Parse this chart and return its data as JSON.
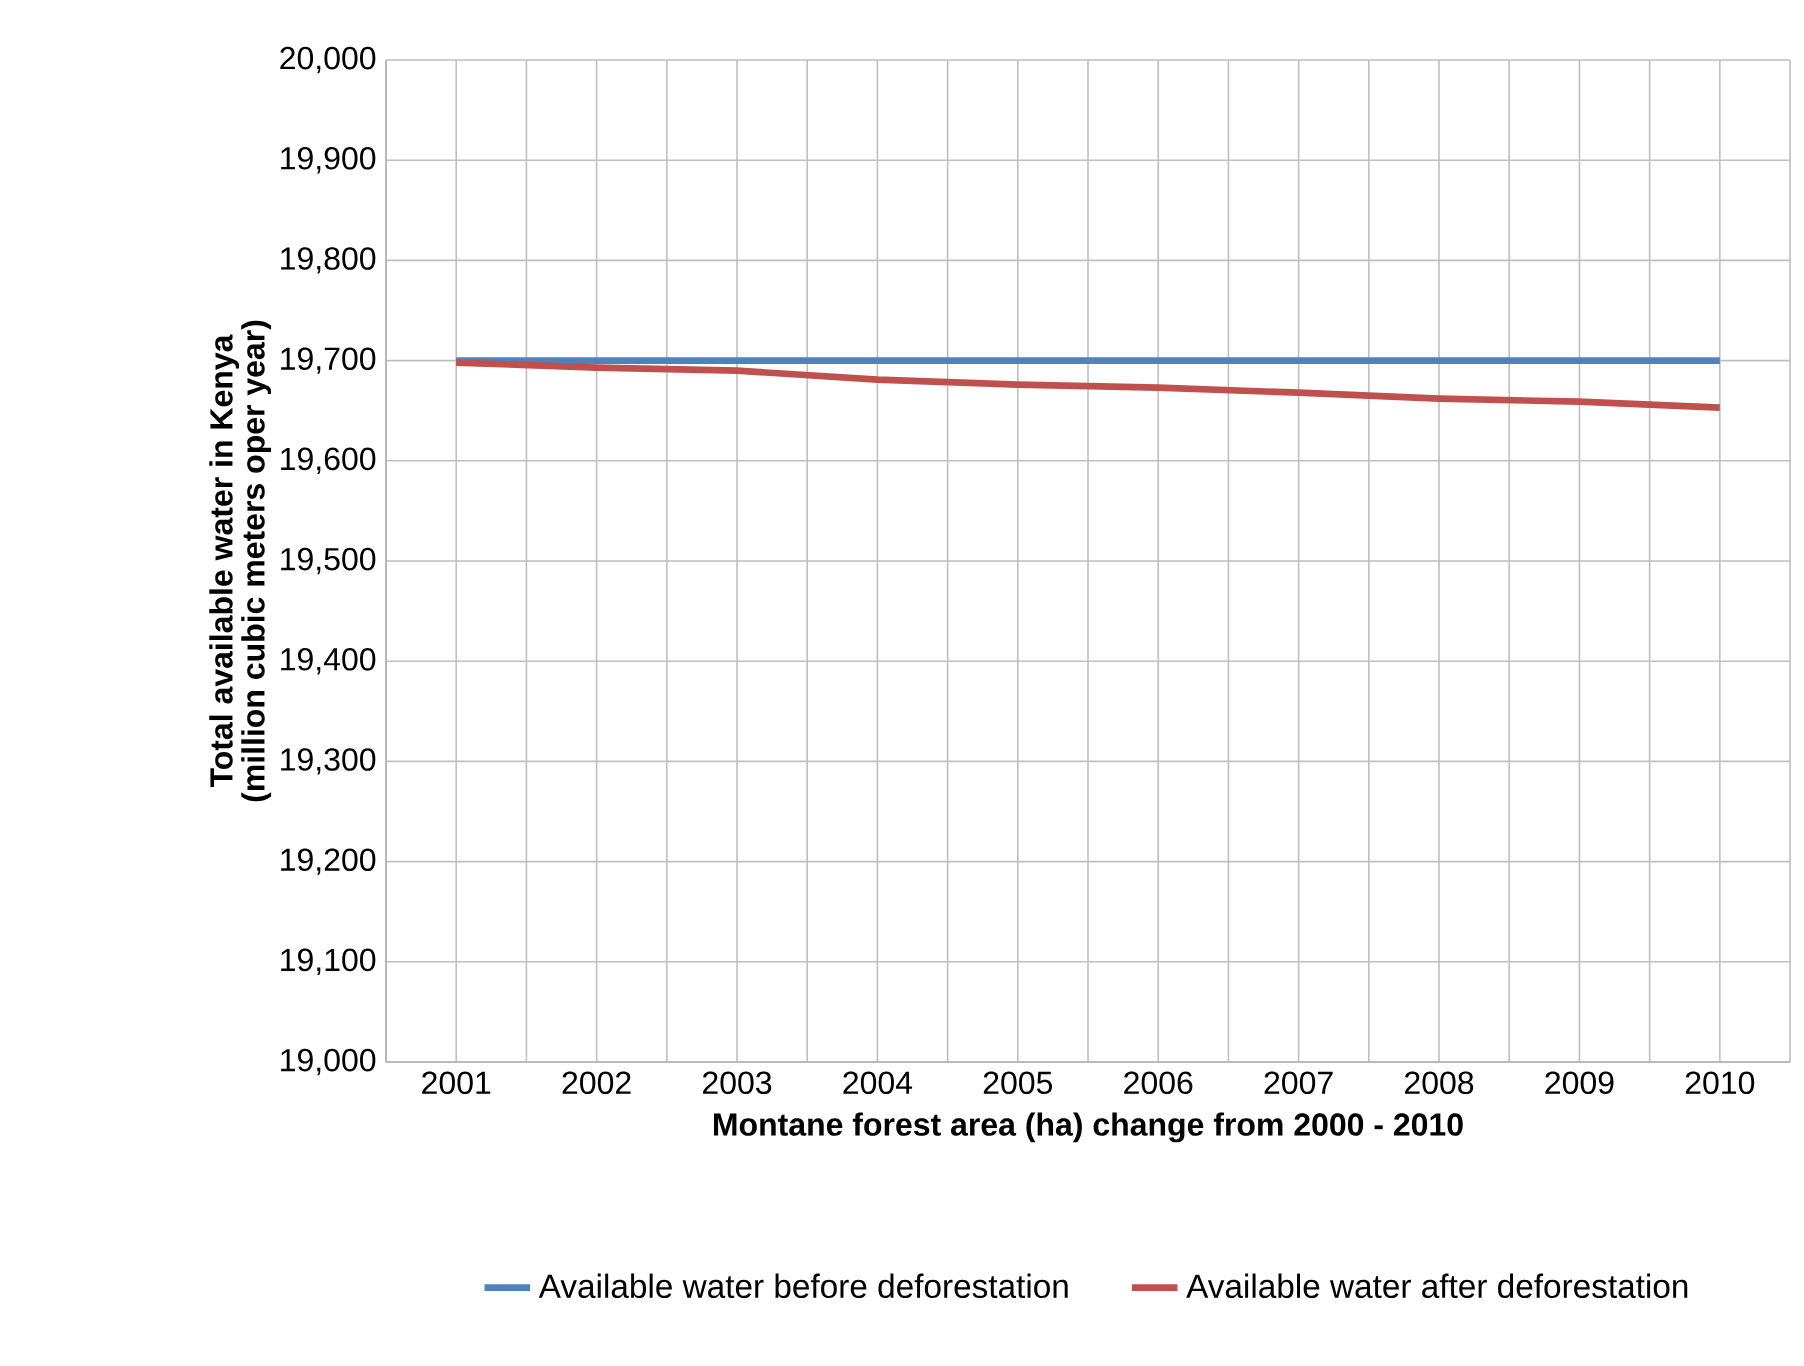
{
  "chart_data": {
    "type": "line",
    "xlabel": "Montane forest area (ha) change from 2000 - 2010",
    "ylabel": "Total available water in Kenya (million cubic meters oper year)",
    "categories": [
      "2001",
      "2002",
      "2003",
      "2004",
      "2005",
      "2006",
      "2007",
      "2008",
      "2009",
      "2010"
    ],
    "series": [
      {
        "name": "Available water before deforestation",
        "color": "#4f81bd",
        "values": [
          19700,
          19700,
          19700,
          19700,
          19700,
          19700,
          19700,
          19700,
          19700,
          19700
        ]
      },
      {
        "name": "Available water after deforestation",
        "color": "#c0504d",
        "values": [
          19698,
          19693,
          19690,
          19681,
          19676,
          19673,
          19668,
          19662,
          19659,
          19653
        ]
      }
    ],
    "ylim": [
      19000,
      20000
    ],
    "yticks": [
      {
        "value": 19000,
        "label": "19,000"
      },
      {
        "value": 19100,
        "label": "19,100"
      },
      {
        "value": 19200,
        "label": "19,200"
      },
      {
        "value": 19300,
        "label": "19,300"
      },
      {
        "value": 19400,
        "label": "19,400"
      },
      {
        "value": 19500,
        "label": "19,500"
      },
      {
        "value": 19600,
        "label": "19,600"
      },
      {
        "value": 19700,
        "label": "19,700"
      },
      {
        "value": 19800,
        "label": "19,800"
      },
      {
        "value": 19900,
        "label": "19,900"
      },
      {
        "value": 20000,
        "label": "20,000"
      }
    ],
    "grid": true,
    "legend": "bottom",
    "marker": "none",
    "line_style": "solid"
  }
}
